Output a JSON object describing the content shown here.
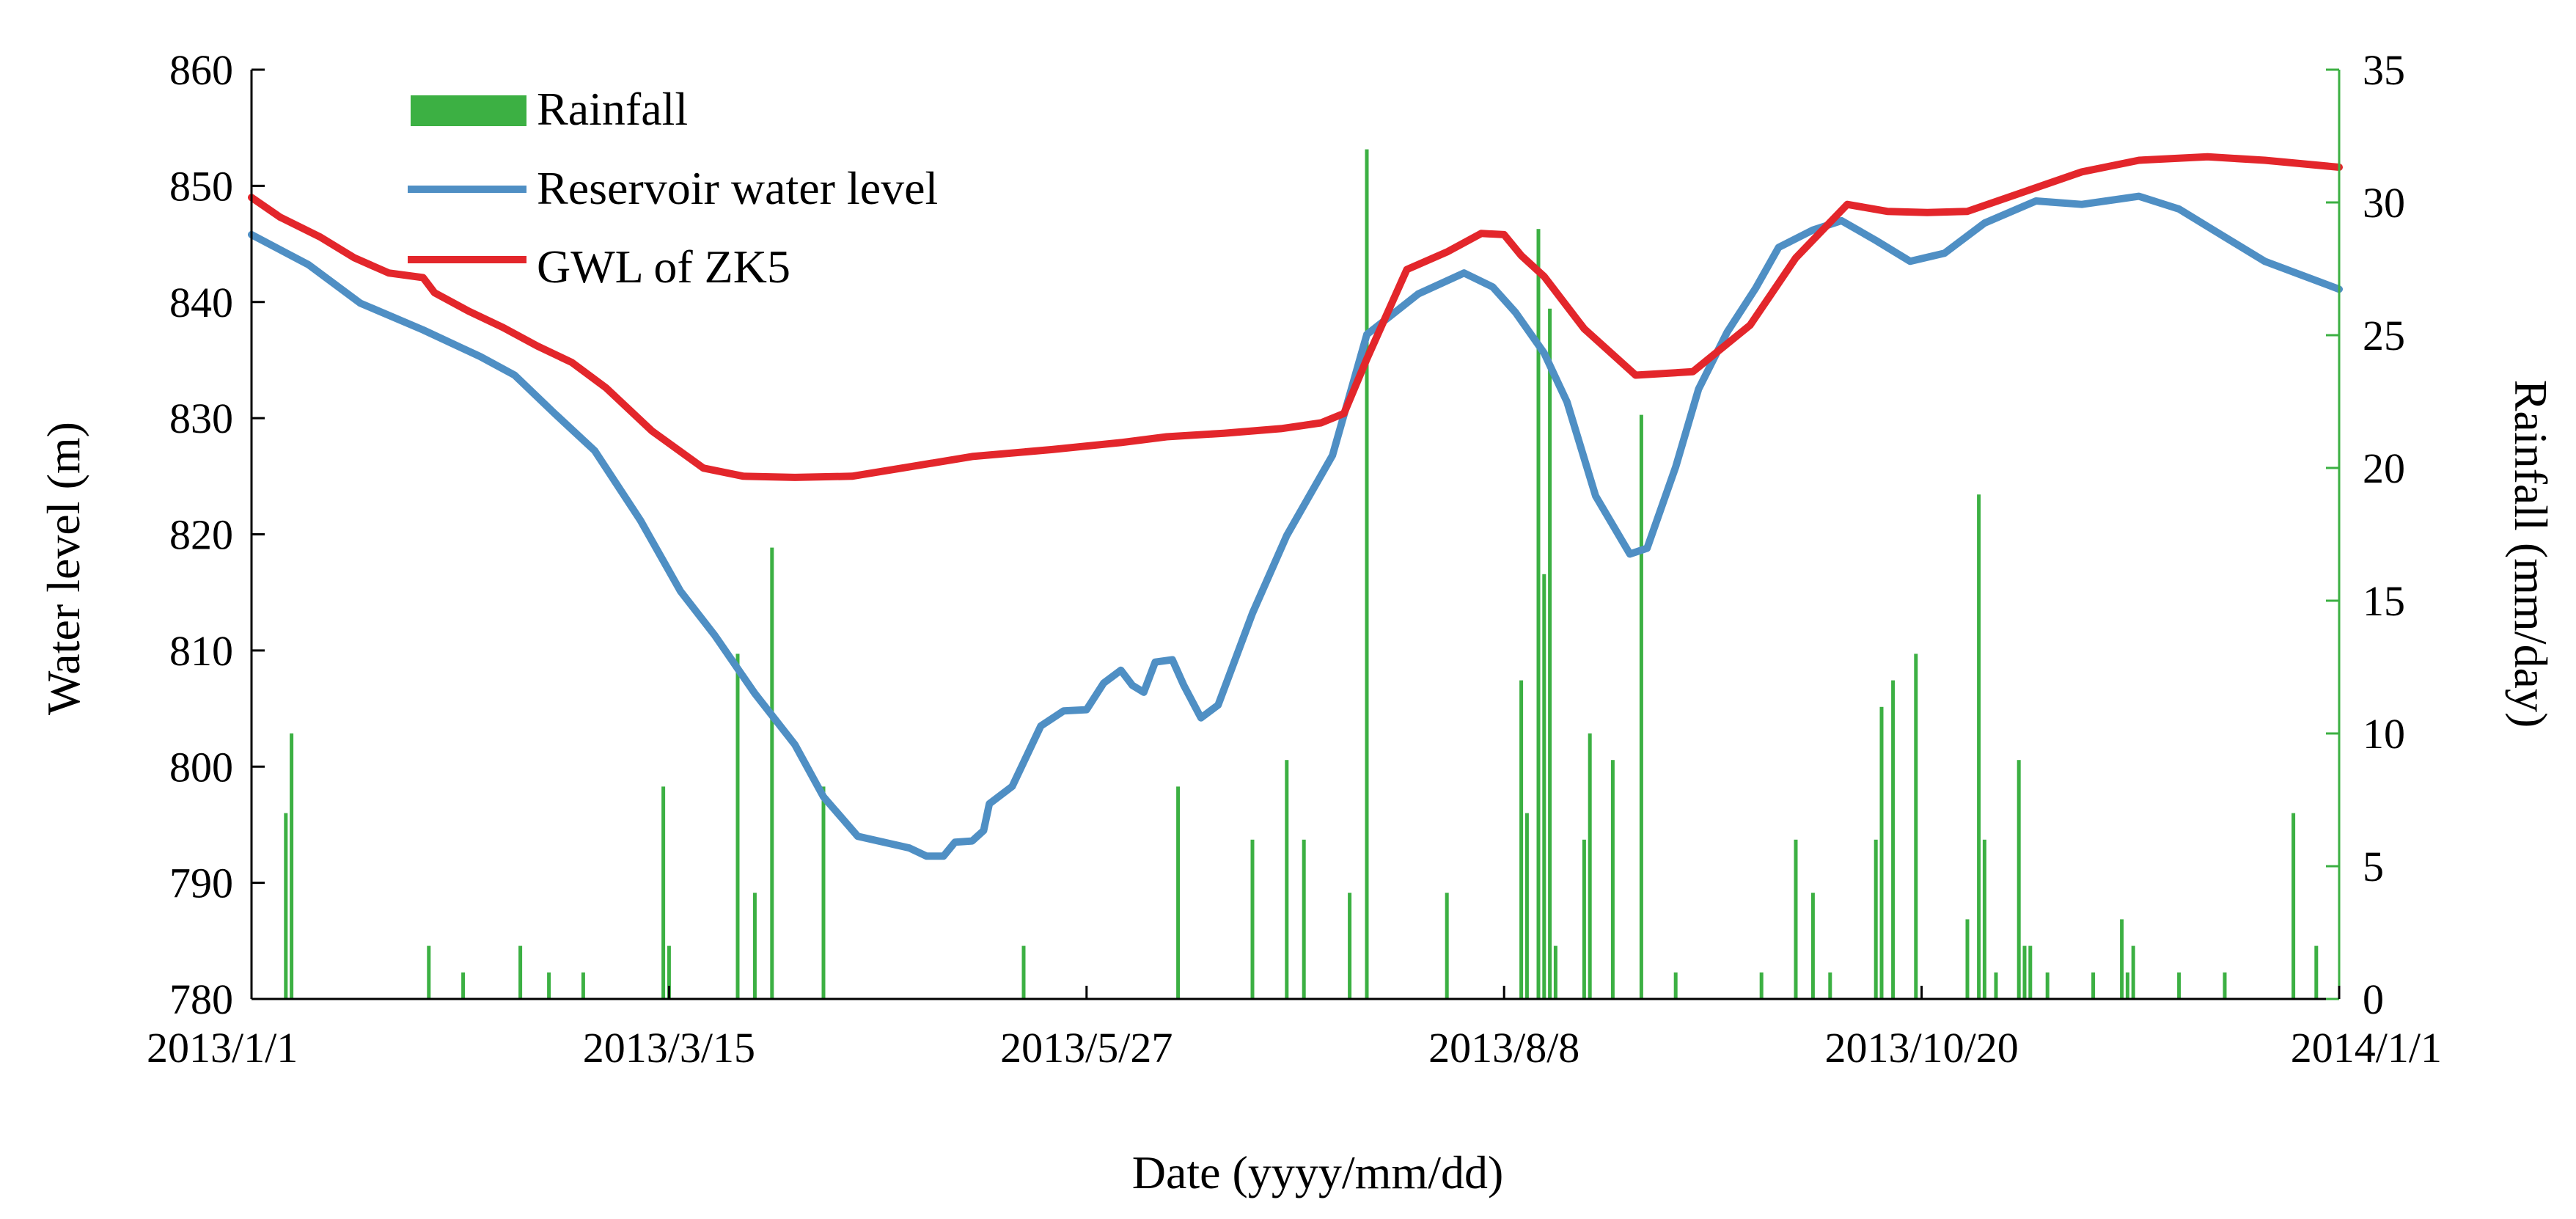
{
  "chart_data": {
    "type": "line",
    "title": "",
    "xlabel": "Date (yyyy/mm/dd)",
    "ylabel_left": "Water level (m)",
    "ylabel_right": "Rainfall (mm/day)",
    "x_ticks": [
      "2013/1/1",
      "2013/3/15",
      "2013/5/27",
      "2013/8/8",
      "2013/10/20",
      "2014/1/1"
    ],
    "x_tick_days": [
      0,
      73,
      146,
      219,
      292,
      365
    ],
    "xlim": [
      0,
      365
    ],
    "ylim_left": [
      780,
      860
    ],
    "y_ticks_left": [
      780,
      790,
      800,
      810,
      820,
      830,
      840,
      850,
      860
    ],
    "ylim_right": [
      0,
      35
    ],
    "y_ticks_right": [
      0,
      5,
      10,
      15,
      20,
      25,
      30,
      35
    ],
    "legend_position": "top-left",
    "series": [
      {
        "name": "Rainfall",
        "kind": "bar",
        "axis": "right",
        "color": "#3cb043",
        "points": [
          {
            "day": 6,
            "value": 7
          },
          {
            "day": 7,
            "value": 10
          },
          {
            "day": 31,
            "value": 2
          },
          {
            "day": 37,
            "value": 1
          },
          {
            "day": 47,
            "value": 2
          },
          {
            "day": 52,
            "value": 1
          },
          {
            "day": 58,
            "value": 1
          },
          {
            "day": 72,
            "value": 8
          },
          {
            "day": 73,
            "value": 2
          },
          {
            "day": 85,
            "value": 13
          },
          {
            "day": 88,
            "value": 4
          },
          {
            "day": 91,
            "value": 17
          },
          {
            "day": 100,
            "value": 8
          },
          {
            "day": 135,
            "value": 2
          },
          {
            "day": 162,
            "value": 8
          },
          {
            "day": 175,
            "value": 6
          },
          {
            "day": 181,
            "value": 9
          },
          {
            "day": 184,
            "value": 6
          },
          {
            "day": 192,
            "value": 4
          },
          {
            "day": 195,
            "value": 32
          },
          {
            "day": 209,
            "value": 4
          },
          {
            "day": 222,
            "value": 12
          },
          {
            "day": 223,
            "value": 7
          },
          {
            "day": 225,
            "value": 29
          },
          {
            "day": 226,
            "value": 16
          },
          {
            "day": 227,
            "value": 26
          },
          {
            "day": 228,
            "value": 2
          },
          {
            "day": 233,
            "value": 6
          },
          {
            "day": 234,
            "value": 10
          },
          {
            "day": 238,
            "value": 9
          },
          {
            "day": 243,
            "value": 22
          },
          {
            "day": 249,
            "value": 1
          },
          {
            "day": 264,
            "value": 1
          },
          {
            "day": 270,
            "value": 6
          },
          {
            "day": 273,
            "value": 4
          },
          {
            "day": 276,
            "value": 1
          },
          {
            "day": 284,
            "value": 6
          },
          {
            "day": 285,
            "value": 11
          },
          {
            "day": 287,
            "value": 12
          },
          {
            "day": 291,
            "value": 13
          },
          {
            "day": 300,
            "value": 3
          },
          {
            "day": 302,
            "value": 19
          },
          {
            "day": 303,
            "value": 6
          },
          {
            "day": 305,
            "value": 1
          },
          {
            "day": 309,
            "value": 9
          },
          {
            "day": 310,
            "value": 2
          },
          {
            "day": 311,
            "value": 2
          },
          {
            "day": 314,
            "value": 1
          },
          {
            "day": 322,
            "value": 1
          },
          {
            "day": 327,
            "value": 3
          },
          {
            "day": 328,
            "value": 1
          },
          {
            "day": 329,
            "value": 2
          },
          {
            "day": 337,
            "value": 1
          },
          {
            "day": 345,
            "value": 1
          },
          {
            "day": 357,
            "value": 7
          },
          {
            "day": 361,
            "value": 2
          }
        ]
      },
      {
        "name": "Reservoir water level",
        "kind": "line",
        "axis": "left",
        "color": "#4f8fc4",
        "points": [
          {
            "day": 0,
            "value": 845.8
          },
          {
            "day": 10,
            "value": 843.2
          },
          {
            "day": 19,
            "value": 839.9
          },
          {
            "day": 30,
            "value": 837.6
          },
          {
            "day": 40,
            "value": 835.3
          },
          {
            "day": 46,
            "value": 833.7
          },
          {
            "day": 53,
            "value": 830.4
          },
          {
            "day": 60,
            "value": 827.2
          },
          {
            "day": 68,
            "value": 821.2
          },
          {
            "day": 75,
            "value": 815.1
          },
          {
            "day": 81,
            "value": 811.3
          },
          {
            "day": 88,
            "value": 806.3
          },
          {
            "day": 95,
            "value": 801.9
          },
          {
            "day": 100,
            "value": 797.4
          },
          {
            "day": 106,
            "value": 794.0
          },
          {
            "day": 115,
            "value": 793.0
          },
          {
            "day": 118,
            "value": 792.3
          },
          {
            "day": 121,
            "value": 792.3
          },
          {
            "day": 123,
            "value": 793.5
          },
          {
            "day": 126,
            "value": 793.6
          },
          {
            "day": 128,
            "value": 794.5
          },
          {
            "day": 129,
            "value": 796.8
          },
          {
            "day": 133,
            "value": 798.3
          },
          {
            "day": 138,
            "value": 803.5
          },
          {
            "day": 142,
            "value": 804.8
          },
          {
            "day": 146,
            "value": 804.9
          },
          {
            "day": 149,
            "value": 807.2
          },
          {
            "day": 152,
            "value": 808.3
          },
          {
            "day": 154,
            "value": 807.0
          },
          {
            "day": 156,
            "value": 806.4
          },
          {
            "day": 158,
            "value": 809.0
          },
          {
            "day": 161,
            "value": 809.2
          },
          {
            "day": 163,
            "value": 807.0
          },
          {
            "day": 166,
            "value": 804.2
          },
          {
            "day": 169,
            "value": 805.3
          },
          {
            "day": 175,
            "value": 813.2
          },
          {
            "day": 181,
            "value": 819.9
          },
          {
            "day": 189,
            "value": 826.8
          },
          {
            "day": 195,
            "value": 837.2
          },
          {
            "day": 204,
            "value": 840.7
          },
          {
            "day": 212,
            "value": 842.5
          },
          {
            "day": 217,
            "value": 841.3
          },
          {
            "day": 221,
            "value": 839.1
          },
          {
            "day": 226,
            "value": 835.6
          },
          {
            "day": 230,
            "value": 831.4
          },
          {
            "day": 235,
            "value": 823.3
          },
          {
            "day": 241,
            "value": 818.3
          },
          {
            "day": 244,
            "value": 818.8
          },
          {
            "day": 249,
            "value": 825.8
          },
          {
            "day": 253,
            "value": 832.5
          },
          {
            "day": 258,
            "value": 837.4
          },
          {
            "day": 263,
            "value": 841.2
          },
          {
            "day": 267,
            "value": 844.7
          },
          {
            "day": 273,
            "value": 846.2
          },
          {
            "day": 278,
            "value": 847.0
          },
          {
            "day": 284,
            "value": 845.3
          },
          {
            "day": 290,
            "value": 843.5
          },
          {
            "day": 296,
            "value": 844.2
          },
          {
            "day": 303,
            "value": 846.8
          },
          {
            "day": 312,
            "value": 848.7
          },
          {
            "day": 320,
            "value": 848.4
          },
          {
            "day": 330,
            "value": 849.1
          },
          {
            "day": 337,
            "value": 848.0
          },
          {
            "day": 343,
            "value": 846.2
          },
          {
            "day": 352,
            "value": 843.5
          },
          {
            "day": 365,
            "value": 841.1
          }
        ]
      },
      {
        "name": "GWL of ZK5",
        "kind": "line",
        "axis": "left",
        "color": "#e3262b",
        "points": [
          {
            "day": 0,
            "value": 849.0
          },
          {
            "day": 5,
            "value": 847.3
          },
          {
            "day": 12,
            "value": 845.6
          },
          {
            "day": 18,
            "value": 843.8
          },
          {
            "day": 24,
            "value": 842.5
          },
          {
            "day": 30,
            "value": 842.1
          },
          {
            "day": 32,
            "value": 840.8
          },
          {
            "day": 38,
            "value": 839.2
          },
          {
            "day": 44,
            "value": 837.8
          },
          {
            "day": 50,
            "value": 836.2
          },
          {
            "day": 56,
            "value": 834.8
          },
          {
            "day": 62,
            "value": 832.6
          },
          {
            "day": 70,
            "value": 828.9
          },
          {
            "day": 79,
            "value": 825.7
          },
          {
            "day": 86,
            "value": 825.0
          },
          {
            "day": 95,
            "value": 824.9
          },
          {
            "day": 105,
            "value": 825.0
          },
          {
            "day": 115,
            "value": 825.8
          },
          {
            "day": 126,
            "value": 826.7
          },
          {
            "day": 140,
            "value": 827.3
          },
          {
            "day": 152,
            "value": 827.9
          },
          {
            "day": 160,
            "value": 828.4
          },
          {
            "day": 170,
            "value": 828.7
          },
          {
            "day": 180,
            "value": 829.1
          },
          {
            "day": 187,
            "value": 829.6
          },
          {
            "day": 191,
            "value": 830.4
          },
          {
            "day": 195,
            "value": 835.1
          },
          {
            "day": 202,
            "value": 842.8
          },
          {
            "day": 209,
            "value": 844.3
          },
          {
            "day": 215,
            "value": 845.9
          },
          {
            "day": 219,
            "value": 845.8
          },
          {
            "day": 222,
            "value": 844.0
          },
          {
            "day": 226,
            "value": 842.2
          },
          {
            "day": 233,
            "value": 837.7
          },
          {
            "day": 242,
            "value": 833.7
          },
          {
            "day": 252,
            "value": 834.0
          },
          {
            "day": 262,
            "value": 838.0
          },
          {
            "day": 270,
            "value": 843.8
          },
          {
            "day": 279,
            "value": 848.4
          },
          {
            "day": 286,
            "value": 847.8
          },
          {
            "day": 293,
            "value": 847.7
          },
          {
            "day": 300,
            "value": 847.8
          },
          {
            "day": 310,
            "value": 849.5
          },
          {
            "day": 320,
            "value": 851.2
          },
          {
            "day": 330,
            "value": 852.2
          },
          {
            "day": 342,
            "value": 852.5
          },
          {
            "day": 352,
            "value": 852.2
          },
          {
            "day": 365,
            "value": 851.6
          }
        ]
      }
    ]
  }
}
